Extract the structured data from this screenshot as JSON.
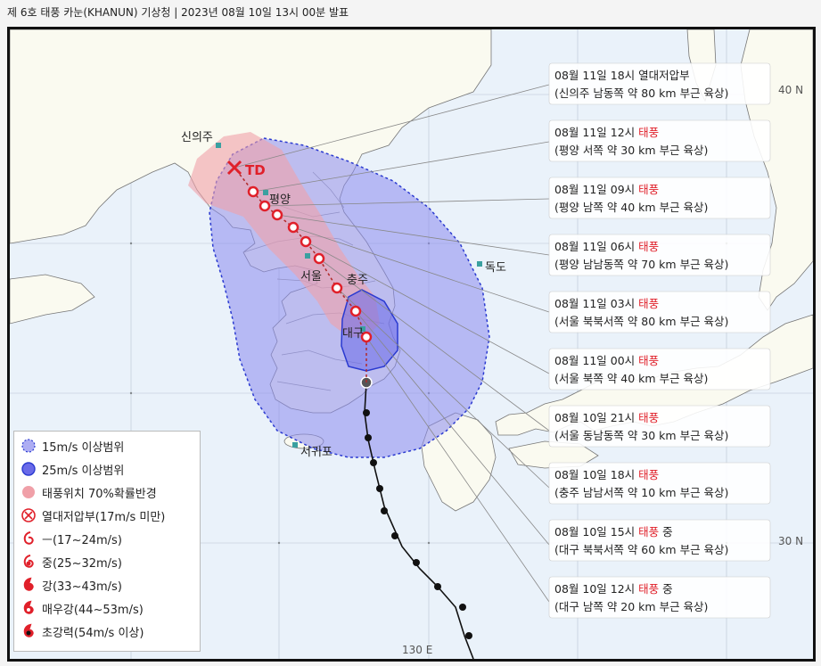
{
  "header": {
    "title": "제 6호 태풍 카눈(KHANUN) 기상청 | 2023년 08월 10일 13시 00분 발표"
  },
  "cities": {
    "sinuiju": "신의주",
    "pyongyang": "평양",
    "seoul": "서울",
    "chungju": "충주",
    "daegu": "대구",
    "dokdo": "독도",
    "seogwipo": "서귀포"
  },
  "td_label": "TD",
  "grid_labels": {
    "lat40": "40 N",
    "lat30": "30 N",
    "lon130": "130 E"
  },
  "forecasts": [
    {
      "line1_prefix": "08월 11일 18시 ",
      "status": "열대저압부",
      "status_highlight": false,
      "suffix": "",
      "line2": "(신의주 남동쪽 약 80 km 부근 육상)"
    },
    {
      "line1_prefix": "08월 11일 12시 ",
      "status": "태풍",
      "status_highlight": true,
      "suffix": "",
      "line2": "(평양 서쪽 약 30 km 부근 육상)"
    },
    {
      "line1_prefix": "08월 11일 09시 ",
      "status": "태풍",
      "status_highlight": true,
      "suffix": "",
      "line2": "(평양 남쪽 약 40 km 부근 육상)"
    },
    {
      "line1_prefix": "08월 11일 06시 ",
      "status": "태풍",
      "status_highlight": true,
      "suffix": "",
      "line2": "(평양 남남동쪽 약 70 km 부근 육상)"
    },
    {
      "line1_prefix": "08월 11일 03시 ",
      "status": "태풍",
      "status_highlight": true,
      "suffix": "",
      "line2": "(서울 북북서쪽 약 80 km 부근 육상)"
    },
    {
      "line1_prefix": "08월 11일 00시 ",
      "status": "태풍",
      "status_highlight": true,
      "suffix": "",
      "line2": "(서울 북쪽 약 40 km 부근 육상)"
    },
    {
      "line1_prefix": "08월 10일 21시 ",
      "status": "태풍",
      "status_highlight": true,
      "suffix": "",
      "line2": "(서울 동남동쪽 약 30 km 부근 육상)"
    },
    {
      "line1_prefix": "08월 10일 18시 ",
      "status": "태풍",
      "status_highlight": true,
      "suffix": "",
      "line2": "(충주 남남서쪽 약 10 km 부근 육상)"
    },
    {
      "line1_prefix": "08월 10일 15시 ",
      "status": "태풍",
      "status_highlight": true,
      "suffix": " 중",
      "line2": "(대구 북북서쪽 약 60 km 부근 육상)"
    },
    {
      "line1_prefix": "08월 10일 12시 ",
      "status": "태풍",
      "status_highlight": true,
      "suffix": " 중",
      "line2": "(대구 남쪽 약 20 km 부근 육상)"
    }
  ],
  "legend": [
    {
      "label": "15m/s 이상범위",
      "icon": "wind-15-circle-icon"
    },
    {
      "label": "25m/s 이상범위",
      "icon": "wind-25-circle-icon"
    },
    {
      "label": "태풍위치 70%확률반경",
      "icon": "probability-circle-icon"
    },
    {
      "label": "열대저압부(17m/s 미만)",
      "icon": "tropical-depression-icon"
    },
    {
      "label": "ㅡ(17~24m/s)",
      "icon": "typhoon-normal-icon"
    },
    {
      "label": "중(25~32m/s)",
      "icon": "typhoon-medium-icon"
    },
    {
      "label": "강(33~43m/s)",
      "icon": "typhoon-strong-icon"
    },
    {
      "label": "매우강(44~53m/s)",
      "icon": "typhoon-very-strong-icon"
    },
    {
      "label": "초강력(54m/s 이상)",
      "icon": "typhoon-super-strong-icon"
    }
  ],
  "colors": {
    "land": "#fafaf0",
    "sea": "#eaf2fa",
    "radius15": "#8a8aee",
    "radius25": "#6a6ae8",
    "probability": "#f0a0a8",
    "typhoon_red": "#e0202a",
    "label_red": "#e0202a"
  }
}
